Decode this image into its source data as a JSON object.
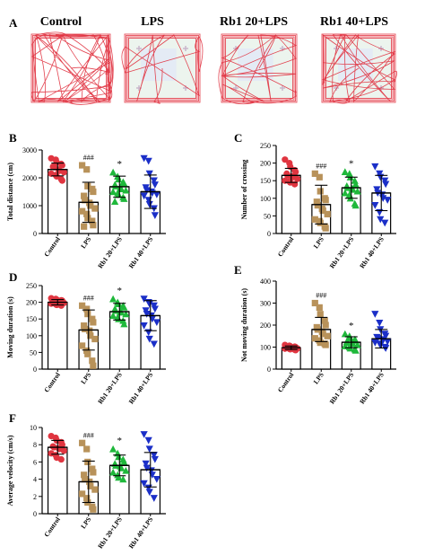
{
  "panel_a": {
    "label": "A",
    "groups": [
      "Control",
      "LPS",
      "Rb1 20+LPS",
      "Rb1 40+LPS"
    ],
    "track_color": "#e0303e"
  },
  "colors": {
    "Control": "#e03540",
    "LPS": "#b8925a",
    "Rb1 20+LPS": "#1fb83b",
    "Rb1 40+LPS": "#1b2fc8"
  },
  "chart_data": [
    {
      "panel": "B",
      "type": "bar",
      "categories": [
        "Control",
        "LPS",
        "Rb1 20+LPS",
        "Rb1 40+LPS"
      ],
      "values": [
        2300,
        1120,
        1680,
        1500
      ],
      "errors": [
        230,
        720,
        380,
        600
      ],
      "ylabel": "Total distance (cm)",
      "ylim": [
        0,
        3000
      ],
      "yticks": [
        0,
        1000,
        2000,
        3000
      ],
      "significance": [
        "",
        "###",
        "*",
        ""
      ],
      "points": [
        [
          2700,
          2650,
          2550,
          2500,
          2450,
          2400,
          2380,
          2300,
          2250,
          2200,
          2150,
          2100,
          2050,
          1950,
          1900
        ],
        [
          2450,
          2300,
          1700,
          1600,
          1500,
          1350,
          1200,
          1100,
          1000,
          900,
          800,
          700,
          550,
          450,
          300,
          250
        ],
        [
          2200,
          2050,
          1950,
          1850,
          1800,
          1750,
          1700,
          1650,
          1600,
          1550,
          1500,
          1450,
          1400,
          1300,
          1250,
          1150
        ],
        [
          2700,
          2600,
          2150,
          1900,
          1750,
          1650,
          1550,
          1500,
          1450,
          1400,
          1350,
          1200,
          1050,
          900,
          650
        ]
      ]
    },
    {
      "panel": "C",
      "type": "bar",
      "categories": [
        "Control",
        "LPS",
        "Rb1 20+LPS",
        "Rb1 40+LPS"
      ],
      "values": [
        165,
        82,
        130,
        115
      ],
      "errors": [
        20,
        55,
        30,
        50
      ],
      "ylabel": "Number of crossing",
      "ylim": [
        0,
        250
      ],
      "yticks": [
        0,
        50,
        100,
        150,
        200,
        250
      ],
      "significance": [
        "",
        "###",
        "*",
        ""
      ],
      "points": [
        [
          210,
          200,
          190,
          180,
          175,
          170,
          165,
          162,
          160,
          155,
          150,
          148,
          145,
          140
        ],
        [
          170,
          160,
          120,
          100,
          95,
          90,
          80,
          70,
          65,
          55,
          40,
          35,
          30,
          20,
          15
        ],
        [
          175,
          170,
          160,
          150,
          140,
          135,
          130,
          128,
          125,
          120,
          115,
          110,
          100,
          85,
          80
        ],
        [
          190,
          170,
          160,
          150,
          140,
          125,
          115,
          110,
          100,
          95,
          80,
          60,
          40,
          30
        ]
      ]
    },
    {
      "panel": "D",
      "type": "bar",
      "categories": [
        "Control",
        "LPS",
        "Rb1 20+LPS",
        "Rb1 40+LPS"
      ],
      "values": [
        200,
        117,
        172,
        160
      ],
      "errors": [
        8,
        60,
        25,
        45
      ],
      "ylabel": "Moving duration (s)",
      "ylim": [
        0,
        250
      ],
      "yticks": [
        0,
        50,
        100,
        150,
        200,
        250
      ],
      "significance": [
        "",
        "###",
        "*",
        ""
      ],
      "points": [
        [
          212,
          210,
          208,
          206,
          205,
          203,
          202,
          200,
          199,
          198,
          196,
          194,
          192,
          190
        ],
        [
          190,
          180,
          165,
          150,
          140,
          130,
          120,
          115,
          100,
          90,
          70,
          55,
          45,
          25,
          10
        ],
        [
          210,
          200,
          195,
          190,
          185,
          180,
          175,
          172,
          170,
          165,
          160,
          155,
          150,
          145,
          135
        ],
        [
          210,
          200,
          195,
          190,
          180,
          175,
          165,
          160,
          150,
          140,
          130,
          110,
          90,
          75
        ]
      ]
    },
    {
      "panel": "E",
      "type": "bar",
      "categories": [
        "Control",
        "LPS",
        "Rb1 20+LPS",
        "Rb1 40+LPS"
      ],
      "values": [
        97,
        180,
        122,
        138
      ],
      "errors": [
        8,
        55,
        25,
        42
      ],
      "ylabel": "Not moving duration (s)",
      "ylim": [
        0,
        400
      ],
      "yticks": [
        0,
        100,
        200,
        300,
        400
      ],
      "significance": [
        "",
        "###",
        "*",
        ""
      ],
      "points": [
        [
          110,
          106,
          104,
          102,
          100,
          98,
          97,
          96,
          95,
          94,
          93,
          92,
          90,
          88,
          86
        ],
        [
          300,
          280,
          250,
          220,
          200,
          190,
          180,
          170,
          160,
          150,
          140,
          130,
          120,
          115,
          110
        ],
        [
          160,
          150,
          140,
          135,
          130,
          125,
          120,
          118,
          115,
          110,
          105,
          100,
          95,
          90,
          85
        ],
        [
          250,
          210,
          180,
          160,
          150,
          145,
          140,
          135,
          130,
          125,
          120,
          115,
          110,
          100,
          95
        ]
      ]
    },
    {
      "panel": "F",
      "type": "bar",
      "categories": [
        "Control",
        "LPS",
        "Rb1 20+LPS",
        "Rb1 40+LPS"
      ],
      "values": [
        7.7,
        3.7,
        5.6,
        5.1
      ],
      "errors": [
        0.8,
        2.4,
        1.2,
        2.0
      ],
      "ylabel": "Average velocity (cm/s)",
      "ylim": [
        0,
        10
      ],
      "yticks": [
        0,
        2,
        4,
        6,
        8,
        10
      ],
      "significance": [
        "",
        "###",
        "*",
        ""
      ],
      "points": [
        [
          9.0,
          8.8,
          8.5,
          8.3,
          8.0,
          7.8,
          7.7,
          7.6,
          7.5,
          7.3,
          7.0,
          6.8,
          6.5,
          6.3
        ],
        [
          8.2,
          7.5,
          6.0,
          5.2,
          4.8,
          4.5,
          4.0,
          3.7,
          3.2,
          2.8,
          2.3,
          1.8,
          1.3,
          0.8,
          0.5
        ],
        [
          7.5,
          7.0,
          6.6,
          6.3,
          6.0,
          5.8,
          5.6,
          5.5,
          5.3,
          5.0,
          4.8,
          4.5,
          4.2,
          4.0
        ],
        [
          9.2,
          8.5,
          7.5,
          6.8,
          6.3,
          5.8,
          5.3,
          5.0,
          4.5,
          4.0,
          3.5,
          3.0,
          2.5,
          1.8
        ]
      ]
    }
  ]
}
